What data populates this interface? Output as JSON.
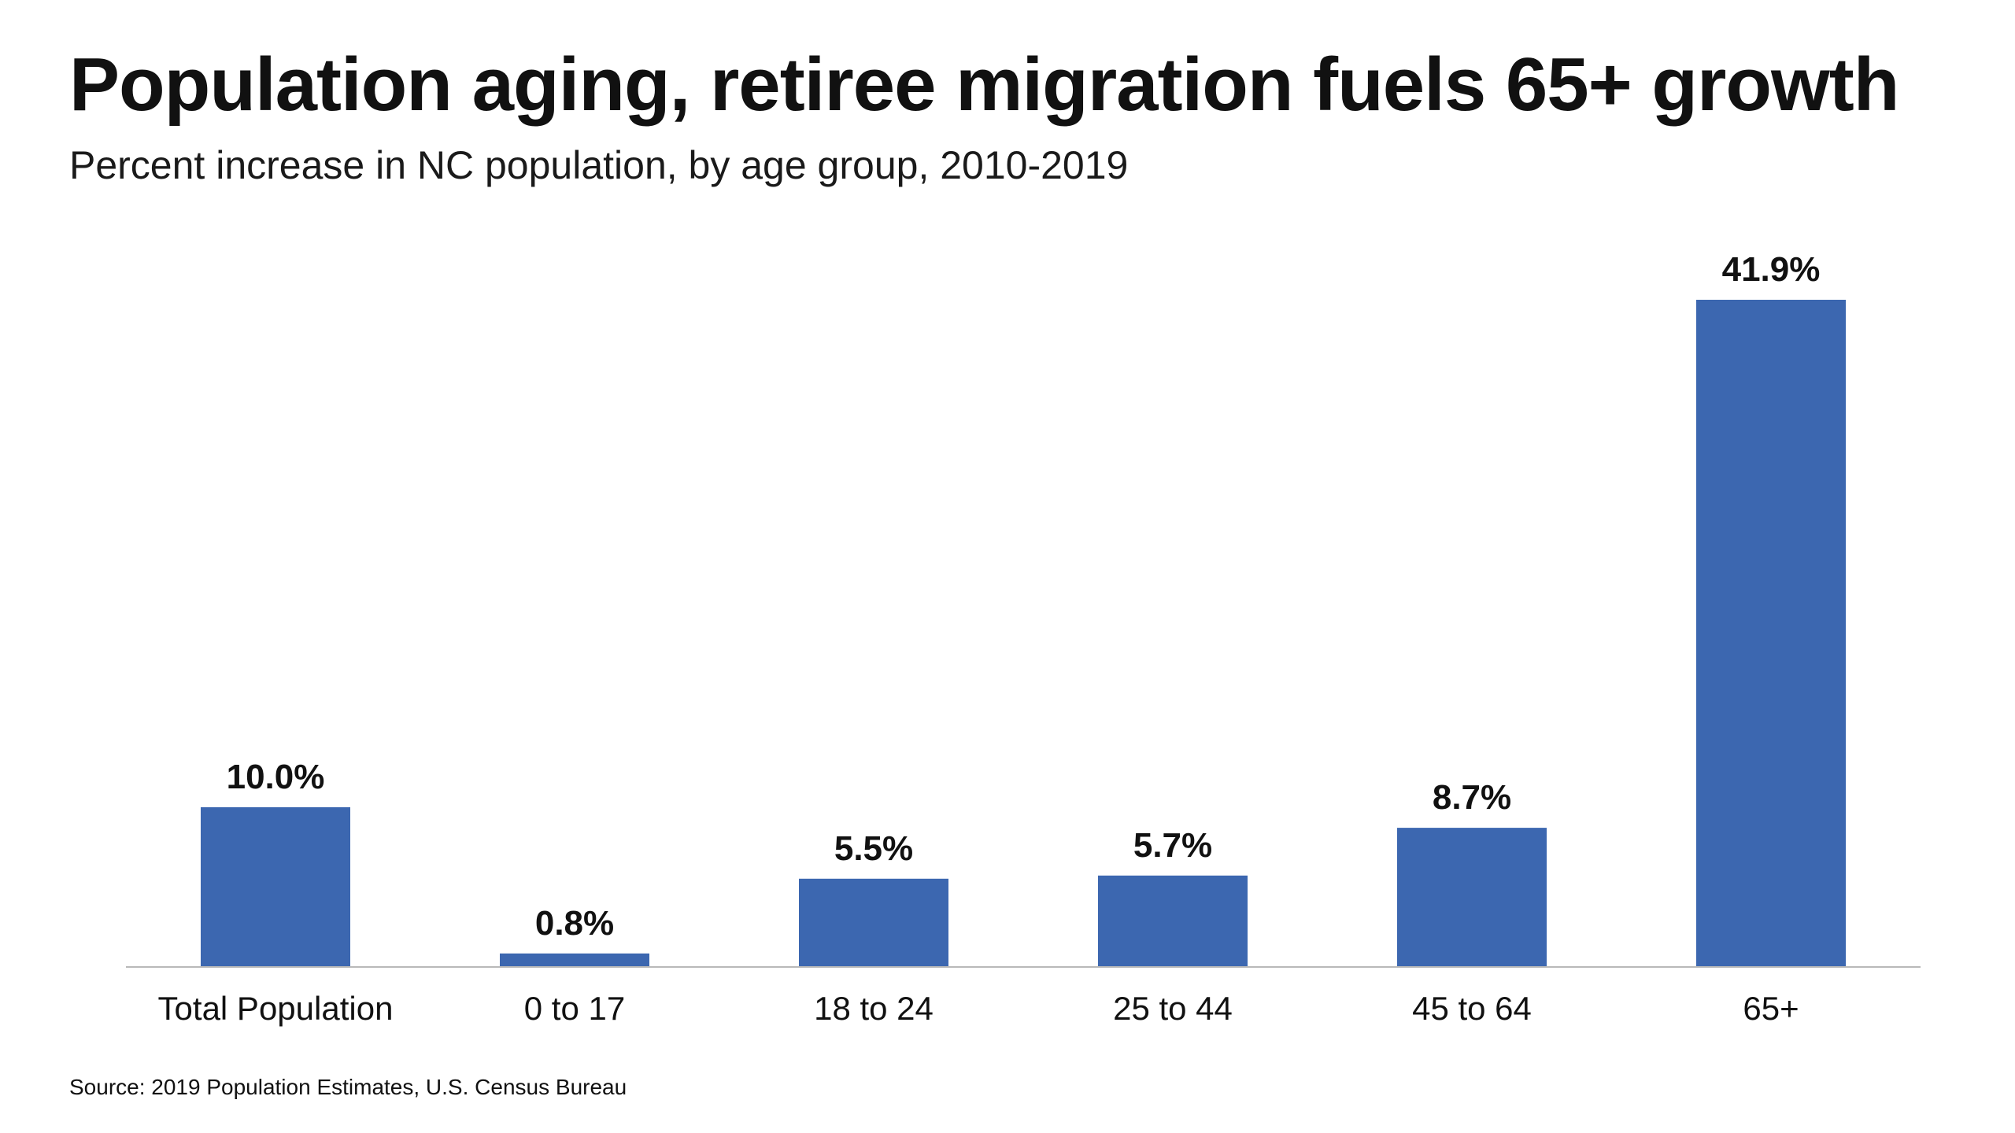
{
  "header": {
    "title": "Population aging, retiree migration fuels 65+ growth",
    "subtitle": "Percent increase in NC population, by age group, 2010-2019"
  },
  "footer": {
    "source": "Source: 2019 Population Estimates, U.S. Census Bureau"
  },
  "colors": {
    "bar": "#3c67b0",
    "axis": "#b9b9b9",
    "text": "#111111"
  },
  "chart_data": {
    "type": "bar",
    "title": "Population aging, retiree migration fuels 65+ growth",
    "subtitle": "Percent increase in NC population, by age group, 2010-2019",
    "categories": [
      "Total Population",
      "0 to 17",
      "18 to 24",
      "25 to 44",
      "45 to 64",
      "65+"
    ],
    "values": [
      10.0,
      0.8,
      5.5,
      5.7,
      8.7,
      41.9
    ],
    "data_labels": [
      "10.0%",
      "0.8%",
      "5.5%",
      "5.7%",
      "8.7%",
      "41.9%"
    ],
    "unit": "%",
    "ylim": [
      0,
      41.9
    ],
    "grid": false,
    "legend": "none",
    "y_axis_visible": false
  }
}
